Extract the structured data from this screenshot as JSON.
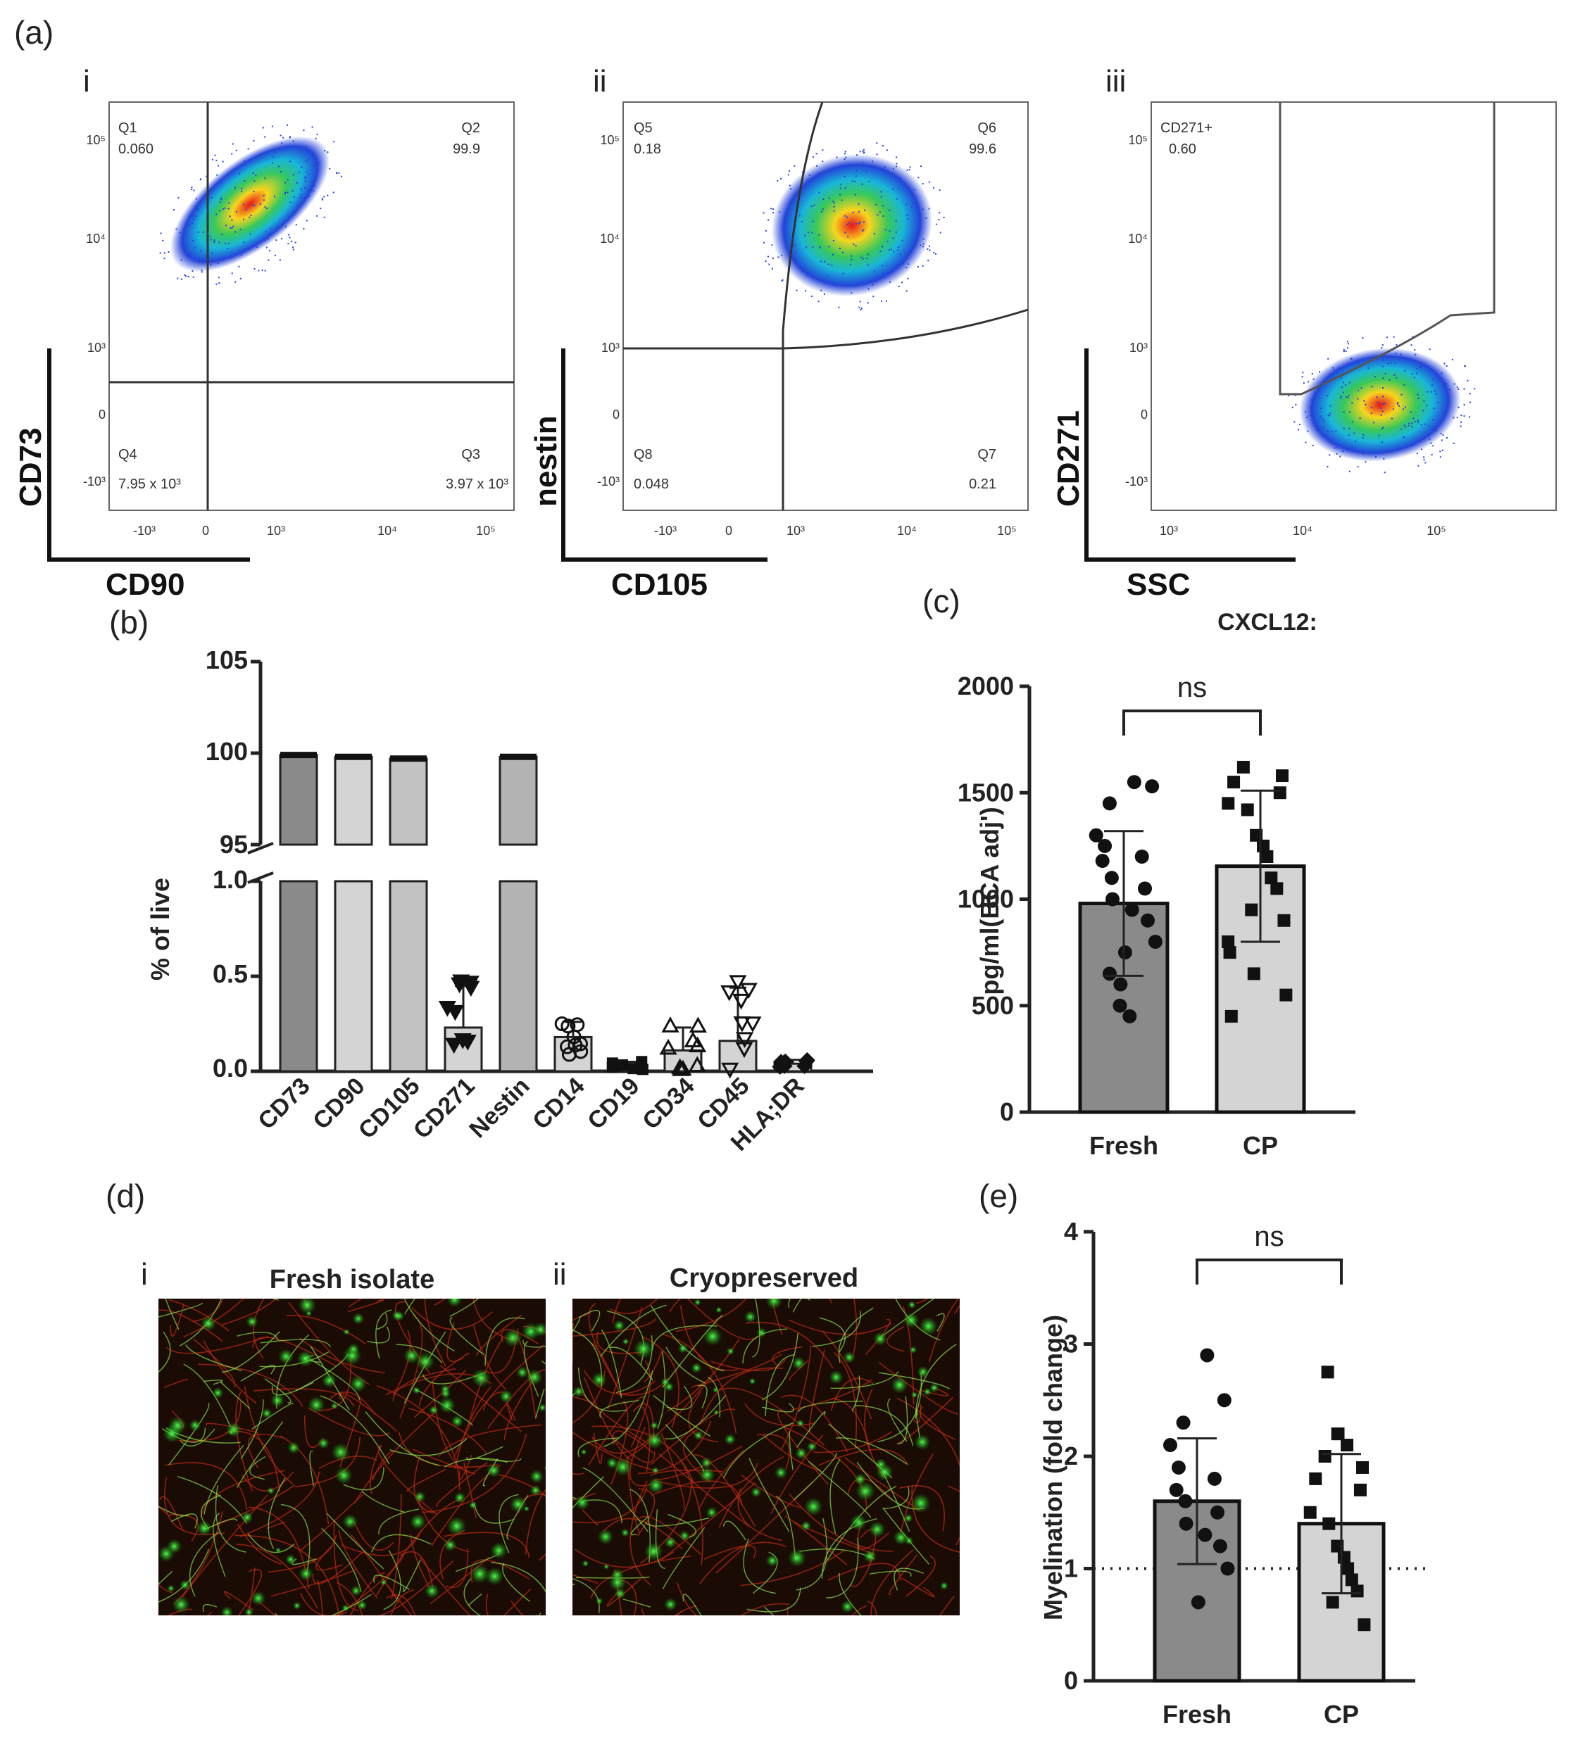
{
  "labels": {
    "a": "(a)",
    "b": "(b)",
    "c": "(c)",
    "d": "(d)",
    "e": "(e)"
  },
  "flow": [
    {
      "sub": "i",
      "xlabel": "CD90",
      "ylabel": "CD73",
      "quadrants": [
        {
          "name": "Q1",
          "value": "0.060"
        },
        {
          "name": "Q2",
          "value": "99.9"
        },
        {
          "name": "Q4",
          "value": "7.95 x 10³"
        },
        {
          "name": "Q3",
          "value": "3.97 x 10³"
        }
      ]
    },
    {
      "sub": "ii",
      "xlabel": "CD105",
      "ylabel": "nestin",
      "quadrants": [
        {
          "name": "Q5",
          "value": "0.18"
        },
        {
          "name": "Q6",
          "value": "99.6"
        },
        {
          "name": "Q8",
          "value": "0.048"
        },
        {
          "name": "Q7",
          "value": "0.21"
        }
      ]
    },
    {
      "sub": "iii",
      "xlabel": "SSC",
      "ylabel": "CD271",
      "gate": {
        "name": "CD271+",
        "value": "0.60"
      }
    }
  ],
  "chart_data": [
    {
      "type": "bar",
      "panel": "b",
      "ylabel": "% of live",
      "categories": [
        "CD73",
        "CD90",
        "CD105",
        "CD271",
        "Nestin",
        "CD14",
        "CD19",
        "CD34",
        "CD45",
        "HLA;DR"
      ],
      "values": [
        99.9,
        99.8,
        99.7,
        0.23,
        99.8,
        0.18,
        0.03,
        0.11,
        0.16,
        0.04
      ],
      "errors": [
        0.1,
        0.3,
        0.1,
        0.22,
        0.1,
        0.08,
        0.02,
        0.12,
        0.28,
        0.02
      ],
      "yticks_lower": [
        "0.0",
        "0.5",
        "1.0"
      ],
      "yticks_upper": [
        "95",
        "100",
        "105"
      ],
      "ylim_lower": [
        0,
        1.0
      ],
      "ylim_upper": [
        95,
        105
      ]
    },
    {
      "type": "bar",
      "panel": "c",
      "title": "CXCL12:",
      "ylabel": "pg/ml(BCA adj')",
      "categories": [
        "Fresh",
        "CP"
      ],
      "values": [
        980,
        1155
      ],
      "errors": [
        340,
        355
      ],
      "points": [
        [
          1550,
          1530,
          1450,
          1300,
          1250,
          1200,
          1180,
          1100,
          1050,
          1000,
          950,
          900,
          800,
          750,
          650,
          600,
          500,
          450
        ],
        [
          1620,
          1580,
          1550,
          1500,
          1450,
          1420,
          1300,
          1250,
          1200,
          1100,
          1050,
          950,
          900,
          800,
          750,
          650,
          550,
          450
        ]
      ],
      "yticks": [
        "0",
        "500",
        "1000",
        "1500",
        "2000"
      ],
      "ylim": [
        0,
        2000
      ],
      "significance": "ns"
    },
    {
      "type": "bar",
      "panel": "e",
      "ylabel": "Myelination (fold change)",
      "categories": [
        "Fresh",
        "CP"
      ],
      "values": [
        1.6,
        1.4
      ],
      "errors": [
        0.56,
        0.62
      ],
      "points": [
        [
          2.9,
          2.5,
          2.3,
          2.1,
          1.9,
          1.8,
          1.7,
          1.6,
          1.5,
          1.4,
          1.3,
          1.2,
          1.0,
          0.7
        ],
        [
          2.75,
          2.2,
          2.2,
          2.1,
          2.0,
          1.9,
          1.8,
          1.7,
          1.5,
          1.4,
          1.2,
          1.1,
          1.0,
          0.9,
          0.8,
          0.7,
          0.5
        ]
      ],
      "yticks": [
        "0",
        "1",
        "2",
        "3",
        "4"
      ],
      "ylim": [
        0,
        4
      ],
      "reference_line": 1,
      "significance": "ns"
    }
  ],
  "images": [
    {
      "sub": "i",
      "title": "Fresh isolate"
    },
    {
      "sub": "ii",
      "title": "Cryopreserved"
    }
  ]
}
